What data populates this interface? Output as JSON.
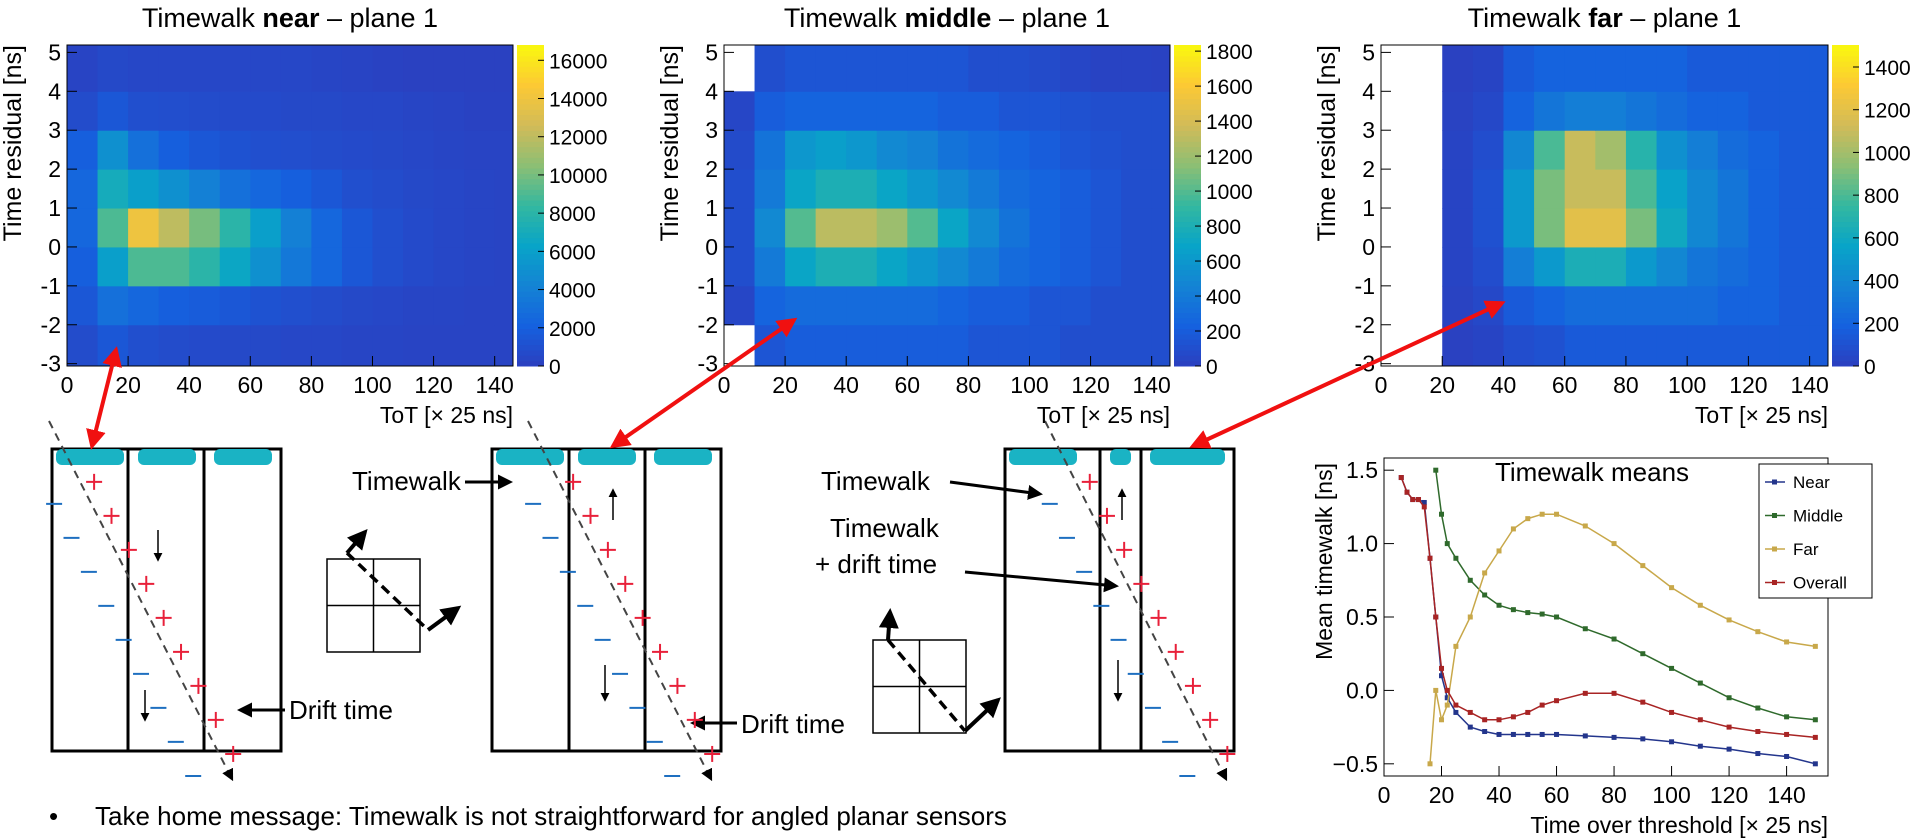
{
  "chart_data": [
    {
      "type": "heatmap",
      "title_parts": [
        "Timewalk ",
        "near",
        " – plane 1"
      ],
      "xlabel": "ToT [× 25 ns]",
      "ylabel": "Time residual [ns]",
      "xlim": [
        0,
        146
      ],
      "ylim": [
        -3.06,
        5.19
      ],
      "xticks": [
        0,
        20,
        40,
        60,
        80,
        100,
        120,
        140
      ],
      "yticks": [
        -3,
        -2,
        -1,
        0,
        1,
        2,
        3,
        4,
        5
      ],
      "xbins": [
        0,
        10,
        20,
        30,
        40,
        50,
        60,
        70,
        80,
        90,
        100,
        110,
        120,
        130,
        140,
        146
      ],
      "ybins": [
        -3.06,
        -2,
        -1,
        0,
        1,
        2,
        3,
        4,
        5.19
      ],
      "zlim": [
        0,
        16800
      ],
      "zticks": [
        0,
        2000,
        4000,
        6000,
        8000,
        10000,
        12000,
        14000,
        16000
      ],
      "z": [
        [
          800,
          1500,
          1000,
          800,
          700,
          600,
          600,
          500,
          500,
          400,
          400,
          300,
          300,
          300,
          300
        ],
        [
          1500,
          3000,
          2500,
          2000,
          1800,
          1500,
          1200,
          1000,
          800,
          600,
          500,
          400,
          400,
          300,
          300
        ],
        [
          2000,
          6000,
          9000,
          9000,
          8000,
          6500,
          5000,
          3500,
          2500,
          1500,
          1000,
          700,
          500,
          400,
          300
        ],
        [
          2500,
          9000,
          14000,
          12000,
          10000,
          8000,
          6000,
          4000,
          2500,
          1500,
          1000,
          700,
          500,
          400,
          300
        ],
        [
          2500,
          7000,
          6000,
          5000,
          4000,
          3000,
          2500,
          2000,
          1500,
          1000,
          800,
          600,
          500,
          400,
          300
        ],
        [
          2000,
          5000,
          3000,
          2000,
          1500,
          1200,
          1000,
          900,
          800,
          700,
          600,
          500,
          400,
          300,
          300
        ],
        [
          800,
          1500,
          1000,
          900,
          800,
          700,
          700,
          600,
          600,
          500,
          500,
          400,
          300,
          200,
          200
        ],
        [
          300,
          600,
          500,
          500,
          500,
          500,
          500,
          500,
          400,
          300,
          200,
          100,
          100,
          100,
          100
        ]
      ]
    },
    {
      "type": "heatmap",
      "title_parts": [
        "Timewalk ",
        "middle",
        " – plane 1"
      ],
      "xlabel": "ToT [× 25 ns]",
      "ylabel": "Time residual [ns]",
      "xlim": [
        0,
        146
      ],
      "ylim": [
        -3.06,
        5.19
      ],
      "xticks": [
        0,
        20,
        40,
        60,
        80,
        100,
        120,
        140
      ],
      "yticks": [
        -3,
        -2,
        -1,
        0,
        1,
        2,
        3,
        4,
        5
      ],
      "xbins": [
        0,
        10,
        20,
        30,
        40,
        50,
        60,
        70,
        80,
        90,
        100,
        110,
        120,
        130,
        140,
        146
      ],
      "ybins": [
        -3.06,
        -2,
        -1,
        0,
        1,
        2,
        3,
        4,
        5.19
      ],
      "zlim": [
        0,
        1835
      ],
      "zticks": [
        0,
        200,
        400,
        600,
        800,
        1000,
        1200,
        1400,
        1600,
        1800
      ],
      "z": [
        [
          0,
          150,
          200,
          200,
          200,
          200,
          200,
          200,
          150,
          150,
          150,
          100,
          100,
          100,
          100
        ],
        [
          50,
          250,
          300,
          300,
          300,
          300,
          300,
          250,
          200,
          200,
          150,
          150,
          100,
          100,
          100
        ],
        [
          100,
          400,
          700,
          800,
          800,
          700,
          600,
          500,
          400,
          300,
          250,
          200,
          150,
          100,
          100
        ],
        [
          100,
          500,
          1000,
          1300,
          1300,
          1200,
          1000,
          700,
          500,
          350,
          250,
          200,
          150,
          100,
          100
        ],
        [
          100,
          400,
          700,
          800,
          800,
          700,
          600,
          500,
          400,
          300,
          250,
          200,
          150,
          100,
          100
        ],
        [
          80,
          350,
          600,
          650,
          600,
          500,
          450,
          350,
          300,
          250,
          200,
          150,
          120,
          100,
          100
        ],
        [
          50,
          200,
          250,
          250,
          250,
          250,
          250,
          200,
          200,
          150,
          150,
          120,
          100,
          100,
          100
        ],
        [
          0,
          100,
          150,
          150,
          150,
          150,
          150,
          150,
          100,
          100,
          80,
          50,
          30,
          30,
          20
        ]
      ]
    },
    {
      "type": "heatmap",
      "title_parts": [
        "Timewalk ",
        "far",
        " – plane 1"
      ],
      "xlabel": "ToT [× 25 ns]",
      "ylabel": "Time residual [ns]",
      "xlim": [
        0,
        146
      ],
      "ylim": [
        -3.06,
        5.19
      ],
      "xticks": [
        0,
        20,
        40,
        60,
        80,
        100,
        120,
        140
      ],
      "yticks": [
        -3,
        -2,
        -1,
        0,
        1,
        2,
        3,
        4,
        5
      ],
      "xbins": [
        0,
        10,
        20,
        30,
        40,
        50,
        60,
        70,
        80,
        90,
        100,
        110,
        120,
        130,
        140,
        146
      ],
      "ybins": [
        -3.06,
        -2,
        -1,
        0,
        1,
        2,
        3,
        4,
        5.19
      ],
      "zlim": [
        0,
        1503
      ],
      "zticks": [
        0,
        200,
        400,
        600,
        800,
        1000,
        1200,
        1400
      ],
      "z": [
        [
          0,
          0,
          10,
          30,
          80,
          100,
          150,
          150,
          150,
          150,
          150,
          150,
          150,
          150,
          150
        ],
        [
          0,
          0,
          20,
          50,
          150,
          200,
          250,
          250,
          250,
          250,
          250,
          200,
          200,
          150,
          150
        ],
        [
          0,
          0,
          30,
          80,
          350,
          500,
          650,
          650,
          500,
          400,
          300,
          250,
          200,
          150,
          150
        ],
        [
          0,
          0,
          30,
          100,
          500,
          900,
          1200,
          1200,
          900,
          600,
          400,
          300,
          200,
          150,
          150
        ],
        [
          0,
          0,
          30,
          100,
          500,
          900,
          1100,
          1100,
          800,
          550,
          400,
          300,
          200,
          150,
          150
        ],
        [
          0,
          0,
          30,
          80,
          400,
          800,
          1100,
          1000,
          700,
          450,
          350,
          250,
          200,
          150,
          150
        ],
        [
          0,
          0,
          20,
          50,
          200,
          300,
          350,
          350,
          300,
          250,
          200,
          200,
          150,
          150,
          150
        ],
        [
          0,
          0,
          10,
          30,
          150,
          200,
          200,
          200,
          200,
          200,
          150,
          150,
          150,
          150,
          150
        ]
      ]
    },
    {
      "type": "line",
      "title": "Timewalk means",
      "xlabel": "Time over threshold [× 25 ns]",
      "ylabel": "Mean timewalk [ns]",
      "xlim": [
        0,
        154.4
      ],
      "ylim": [
        -0.583,
        1.583
      ],
      "xticks": [
        0,
        20,
        40,
        60,
        80,
        100,
        120,
        140
      ],
      "yticks": [
        {
          "value": -0.5,
          "label": "−0.5"
        },
        {
          "value": 0,
          "label": "0.0"
        },
        0.5,
        {
          "value": 1,
          "label": "1.0"
        },
        1.5
      ],
      "legend": "upper right",
      "x": [
        6,
        8,
        10,
        12,
        14,
        16,
        18,
        20,
        22,
        25,
        30,
        35,
        40,
        45,
        50,
        55,
        60,
        70,
        80,
        90,
        100,
        110,
        120,
        130,
        140,
        150
      ],
      "series": [
        {
          "name": "Near",
          "color": "#23358c",
          "values": [
            1.45,
            1.35,
            1.3,
            1.3,
            1.28,
            0.9,
            0.5,
            0.1,
            -0.05,
            -0.15,
            -0.25,
            -0.28,
            -0.3,
            -0.3,
            -0.3,
            -0.3,
            -0.3,
            -0.31,
            -0.32,
            -0.33,
            -0.35,
            -0.38,
            -0.4,
            -0.43,
            -0.45,
            -0.5
          ]
        },
        {
          "name": "Middle",
          "color": "#2f6a2c",
          "values": [
            null,
            null,
            null,
            null,
            null,
            null,
            1.5,
            1.2,
            1.0,
            0.9,
            0.75,
            0.65,
            0.58,
            0.55,
            0.53,
            0.52,
            0.5,
            0.42,
            0.35,
            0.25,
            0.15,
            0.05,
            -0.05,
            -0.12,
            -0.18,
            -0.2
          ]
        },
        {
          "name": "Far",
          "color": "#c8a84a",
          "values": [
            null,
            null,
            null,
            null,
            null,
            -0.5,
            0,
            -0.2,
            -0.1,
            0.3,
            0.5,
            0.8,
            0.95,
            1.1,
            1.17,
            1.2,
            1.2,
            1.12,
            1.0,
            0.85,
            0.7,
            0.58,
            0.48,
            0.4,
            0.33,
            0.3
          ]
        },
        {
          "name": "Overall",
          "color": "#a82424",
          "values": [
            1.45,
            1.35,
            1.3,
            1.3,
            1.25,
            0.9,
            0.5,
            0.15,
            0,
            -0.1,
            -0.15,
            -0.2,
            -0.2,
            -0.18,
            -0.15,
            -0.1,
            -0.07,
            -0.02,
            -0.02,
            -0.08,
            -0.15,
            -0.2,
            -0.25,
            -0.28,
            -0.3,
            -0.32
          ]
        }
      ]
    }
  ],
  "diagrams": [
    {
      "labels": [
        "Drift time"
      ]
    },
    {
      "labels": [
        "Timewalk",
        "Drift time"
      ]
    },
    {
      "labels": [
        "Timewalk",
        "Timewalk",
        "+ drift time"
      ]
    }
  ],
  "footer": "Take home message: Timewalk is not straightforward for angled planar sensors"
}
